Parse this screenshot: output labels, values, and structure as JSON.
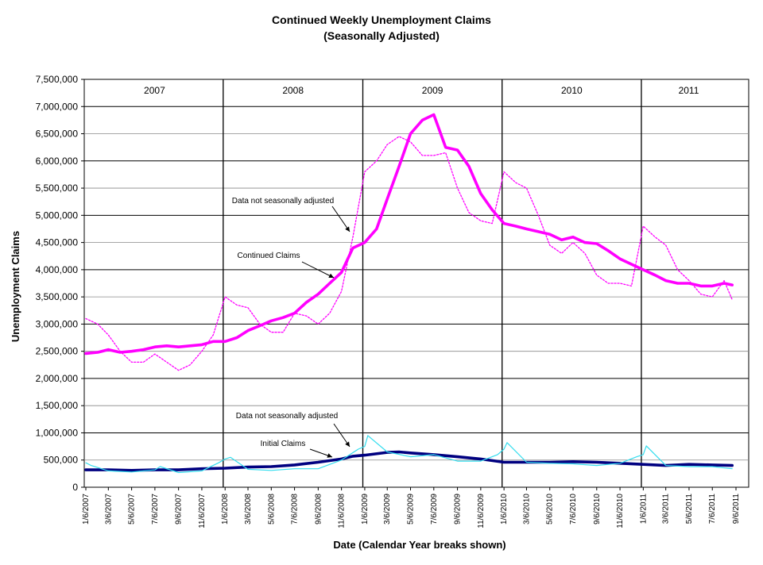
{
  "chart_data": {
    "type": "line",
    "title": "Continued Weekly Unemployment Claims",
    "subtitle": "(Seasonally Adjusted)",
    "xlabel": "Date (Calendar Year breaks shown)",
    "ylabel": "Unemployment Claims",
    "ylim": [
      0,
      7500000
    ],
    "yticks": [
      "0",
      "500,000",
      "1,000,000",
      "1,500,000",
      "2,000,000",
      "2,500,000",
      "3,000,000",
      "3,500,000",
      "4,000,000",
      "4,500,000",
      "5,000,000",
      "5,500,000",
      "6,000,000",
      "6,500,000",
      "7,000,000",
      "7,500,000"
    ],
    "xticks": [
      "1/6/2007",
      "3/6/2007",
      "5/6/2007",
      "7/6/2007",
      "9/6/2007",
      "11/6/2007",
      "1/6/2008",
      "3/6/2008",
      "5/6/2008",
      "7/6/2008",
      "9/6/2008",
      "11/6/2008",
      "1/6/2009",
      "3/6/2009",
      "5/6/2009",
      "7/6/2009",
      "9/6/2009",
      "11/6/2009",
      "1/6/2010",
      "3/6/2010",
      "5/6/2010",
      "7/6/2010",
      "9/6/2010",
      "11/6/2010",
      "1/6/2011",
      "3/6/2011",
      "5/6/2011",
      "7/6/2011",
      "9/6/2011"
    ],
    "years": [
      "2007",
      "2008",
      "2009",
      "2010",
      "2011"
    ],
    "grid": true,
    "annotations": [
      "Data not seasonally adjusted",
      "Continued Claims",
      "Data not seasonally adjusted",
      "Initial Claims"
    ],
    "colors": {
      "continued_sa": "#ff00ff",
      "continued_nsa": "#ff00ff",
      "initial_sa": "#000080",
      "initial_nsa": "#33ddee"
    },
    "series": [
      {
        "style": "thick-solid",
        "color_key": "continued_sa",
        "x": [
          "2007-01-06",
          "2007-02-06",
          "2007-03-06",
          "2007-04-06",
          "2007-05-06",
          "2007-06-06",
          "2007-07-06",
          "2007-08-06",
          "2007-09-06",
          "2007-10-06",
          "2007-11-06",
          "2007-12-06",
          "2008-01-06",
          "2008-02-06",
          "2008-03-06",
          "2008-04-06",
          "2008-05-06",
          "2008-06-06",
          "2008-07-06",
          "2008-08-06",
          "2008-09-06",
          "2008-10-06",
          "2008-11-06",
          "2008-12-06",
          "2009-01-06",
          "2009-02-06",
          "2009-03-06",
          "2009-04-06",
          "2009-05-06",
          "2009-06-06",
          "2009-07-06",
          "2009-08-06",
          "2009-09-06",
          "2009-10-06",
          "2009-11-06",
          "2009-12-06",
          "2010-01-06",
          "2010-02-06",
          "2010-03-06",
          "2010-04-06",
          "2010-05-06",
          "2010-06-06",
          "2010-07-06",
          "2010-08-06",
          "2010-09-06",
          "2010-10-06",
          "2010-11-06",
          "2010-12-06",
          "2011-01-06",
          "2011-02-06",
          "2011-03-06",
          "2011-04-06",
          "2011-05-06",
          "2011-06-06",
          "2011-07-06",
          "2011-08-06",
          "2011-08-27"
        ],
        "values": [
          2460000,
          2480000,
          2530000,
          2480000,
          2500000,
          2530000,
          2580000,
          2600000,
          2580000,
          2600000,
          2620000,
          2680000,
          2680000,
          2750000,
          2880000,
          2970000,
          3060000,
          3120000,
          3200000,
          3400000,
          3550000,
          3750000,
          3950000,
          4400000,
          4500000,
          4750000,
          5300000,
          5900000,
          6500000,
          6750000,
          6850000,
          6250000,
          6200000,
          5900000,
          5400000,
          5100000,
          4850000,
          4800000,
          4750000,
          4700000,
          4650000,
          4550000,
          4600000,
          4500000,
          4480000,
          4350000,
          4200000,
          4100000,
          4000000,
          3900000,
          3800000,
          3750000,
          3750000,
          3700000,
          3700000,
          3750000,
          3720000
        ]
      },
      {
        "style": "thin-dotted",
        "color_key": "continued_nsa",
        "x": [
          "2007-01-06",
          "2007-02-06",
          "2007-03-06",
          "2007-04-06",
          "2007-05-06",
          "2007-06-06",
          "2007-07-06",
          "2007-08-06",
          "2007-09-06",
          "2007-10-06",
          "2007-11-06",
          "2007-12-06",
          "2008-01-06",
          "2008-02-06",
          "2008-03-06",
          "2008-04-06",
          "2008-05-06",
          "2008-06-06",
          "2008-07-06",
          "2008-08-06",
          "2008-09-06",
          "2008-10-06",
          "2008-11-06",
          "2008-12-06",
          "2009-01-06",
          "2009-02-06",
          "2009-03-06",
          "2009-04-06",
          "2009-05-06",
          "2009-06-06",
          "2009-07-06",
          "2009-08-06",
          "2009-09-06",
          "2009-10-06",
          "2009-11-06",
          "2009-12-06",
          "2010-01-06",
          "2010-02-06",
          "2010-03-06",
          "2010-04-06",
          "2010-05-06",
          "2010-06-06",
          "2010-07-06",
          "2010-08-06",
          "2010-09-06",
          "2010-10-06",
          "2010-11-06",
          "2010-12-06",
          "2011-01-06",
          "2011-02-06",
          "2011-03-06",
          "2011-04-06",
          "2011-05-06",
          "2011-06-06",
          "2011-07-06",
          "2011-08-06",
          "2011-08-27"
        ],
        "values": [
          3100000,
          3000000,
          2800000,
          2500000,
          2300000,
          2300000,
          2450000,
          2300000,
          2150000,
          2250000,
          2500000,
          2800000,
          3500000,
          3350000,
          3300000,
          3000000,
          2850000,
          2850000,
          3200000,
          3150000,
          3000000,
          3200000,
          3600000,
          4600000,
          5800000,
          6000000,
          6300000,
          6450000,
          6350000,
          6100000,
          6100000,
          6150000,
          5500000,
          5050000,
          4900000,
          4850000,
          5800000,
          5600000,
          5500000,
          5000000,
          4450000,
          4300000,
          4500000,
          4300000,
          3900000,
          3750000,
          3750000,
          3700000,
          4800000,
          4600000,
          4450000,
          4000000,
          3800000,
          3550000,
          3500000,
          3800000,
          3450000
        ]
      },
      {
        "style": "thick-solid",
        "color_key": "initial_sa",
        "x": [
          "2007-01-06",
          "2007-03-06",
          "2007-05-06",
          "2007-07-06",
          "2007-09-06",
          "2007-11-06",
          "2008-01-06",
          "2008-03-06",
          "2008-05-06",
          "2008-07-06",
          "2008-09-06",
          "2008-11-06",
          "2008-12-06",
          "2009-01-06",
          "2009-03-06",
          "2009-04-06",
          "2009-05-06",
          "2009-07-06",
          "2009-09-06",
          "2009-11-06",
          "2010-01-06",
          "2010-03-06",
          "2010-05-06",
          "2010-07-06",
          "2010-09-06",
          "2010-11-06",
          "2011-01-06",
          "2011-03-06",
          "2011-05-06",
          "2011-07-06",
          "2011-08-27"
        ],
        "values": [
          320000,
          320000,
          310000,
          320000,
          320000,
          340000,
          350000,
          370000,
          380000,
          410000,
          460000,
          520000,
          570000,
          590000,
          640000,
          650000,
          630000,
          600000,
          560000,
          520000,
          460000,
          460000,
          460000,
          470000,
          460000,
          440000,
          420000,
          400000,
          420000,
          410000,
          400000
        ]
      },
      {
        "style": "thin-solid",
        "color_key": "initial_nsa",
        "x": [
          "2007-01-06",
          "2007-01-20",
          "2007-03-06",
          "2007-05-06",
          "2007-07-06",
          "2007-07-20",
          "2007-09-06",
          "2007-11-06",
          "2007-12-20",
          "2008-01-06",
          "2008-01-20",
          "2008-03-06",
          "2008-05-06",
          "2008-07-06",
          "2008-09-06",
          "2008-11-06",
          "2008-12-20",
          "2009-01-06",
          "2009-01-14",
          "2009-03-06",
          "2009-05-06",
          "2009-07-06",
          "2009-09-06",
          "2009-11-06",
          "2009-12-20",
          "2010-01-06",
          "2010-01-14",
          "2010-03-06",
          "2010-05-06",
          "2010-07-06",
          "2010-09-06",
          "2010-11-06",
          "2010-12-20",
          "2011-01-06",
          "2011-01-14",
          "2011-03-06",
          "2011-05-06",
          "2011-07-06",
          "2011-08-27"
        ],
        "values": [
          450000,
          400000,
          300000,
          280000,
          320000,
          380000,
          270000,
          300000,
          450000,
          520000,
          550000,
          330000,
          310000,
          340000,
          340000,
          500000,
          700000,
          750000,
          950000,
          650000,
          560000,
          600000,
          480000,
          480000,
          600000,
          700000,
          820000,
          460000,
          440000,
          430000,
          400000,
          440000,
          560000,
          600000,
          760000,
          400000,
          380000,
          380000,
          340000
        ]
      }
    ]
  }
}
